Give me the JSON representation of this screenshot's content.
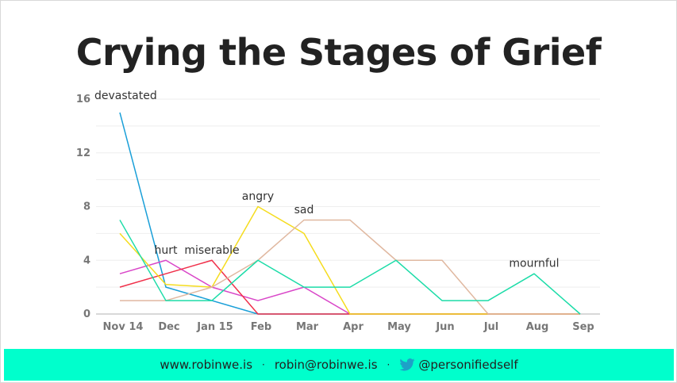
{
  "title": "Crying the Stages of Grief",
  "footer": {
    "website": "www.robinwe.is",
    "separator": "·",
    "email": "robin@robinwe.is",
    "twitter": "@personifiedself",
    "twitter_icon": "twitter-bird-icon"
  },
  "chart_data": {
    "type": "line",
    "categories": [
      "Nov 14",
      "Dec",
      "Jan 15",
      "Feb",
      "Mar",
      "Apr",
      "May",
      "Jun",
      "Jul",
      "Aug",
      "Sep"
    ],
    "yticks": [
      0,
      4,
      8,
      12,
      16
    ],
    "ylim": [
      0,
      16
    ],
    "grid": true,
    "series": [
      {
        "name": "devastated",
        "color": "#1a9fd8",
        "values": [
          15,
          2,
          1,
          0,
          0,
          0,
          0,
          0,
          0,
          0,
          0
        ]
      },
      {
        "name": "hurt",
        "color": "#d946c8",
        "values": [
          3,
          4,
          2,
          1,
          2,
          0,
          0,
          0,
          0,
          0,
          0
        ]
      },
      {
        "name": "miserable",
        "color": "#f0304a",
        "values": [
          2,
          3,
          4,
          0,
          0,
          0,
          0,
          0,
          0,
          0,
          0
        ]
      },
      {
        "name": "angry",
        "color": "#f5dc1e",
        "values": [
          6,
          2.2,
          2,
          8,
          6,
          0,
          0,
          0,
          0,
          0,
          0
        ]
      },
      {
        "name": "sad",
        "color": "#e0b8a0",
        "values": [
          1,
          1,
          2,
          4,
          7,
          7,
          4,
          4,
          0,
          0,
          0
        ]
      },
      {
        "name": "mournful",
        "color": "#1cdca8",
        "values": [
          7,
          1,
          1,
          4,
          2,
          2,
          4,
          1,
          1,
          3,
          0
        ]
      }
    ],
    "annotations": [
      {
        "text": "devastated",
        "series": "devastated",
        "index": 0,
        "value": 16
      },
      {
        "text": "hurt",
        "series": "hurt",
        "index": 1,
        "value": 4.5
      },
      {
        "text": "miserable",
        "series": "miserable",
        "index": 2,
        "value": 4.5
      },
      {
        "text": "angry",
        "series": "angry",
        "index": 3,
        "value": 8.5
      },
      {
        "text": "sad",
        "series": "sad",
        "index": 4,
        "value": 7.5
      },
      {
        "text": "mournful",
        "series": "mournful",
        "index": 9,
        "value": 3.5
      }
    ]
  }
}
